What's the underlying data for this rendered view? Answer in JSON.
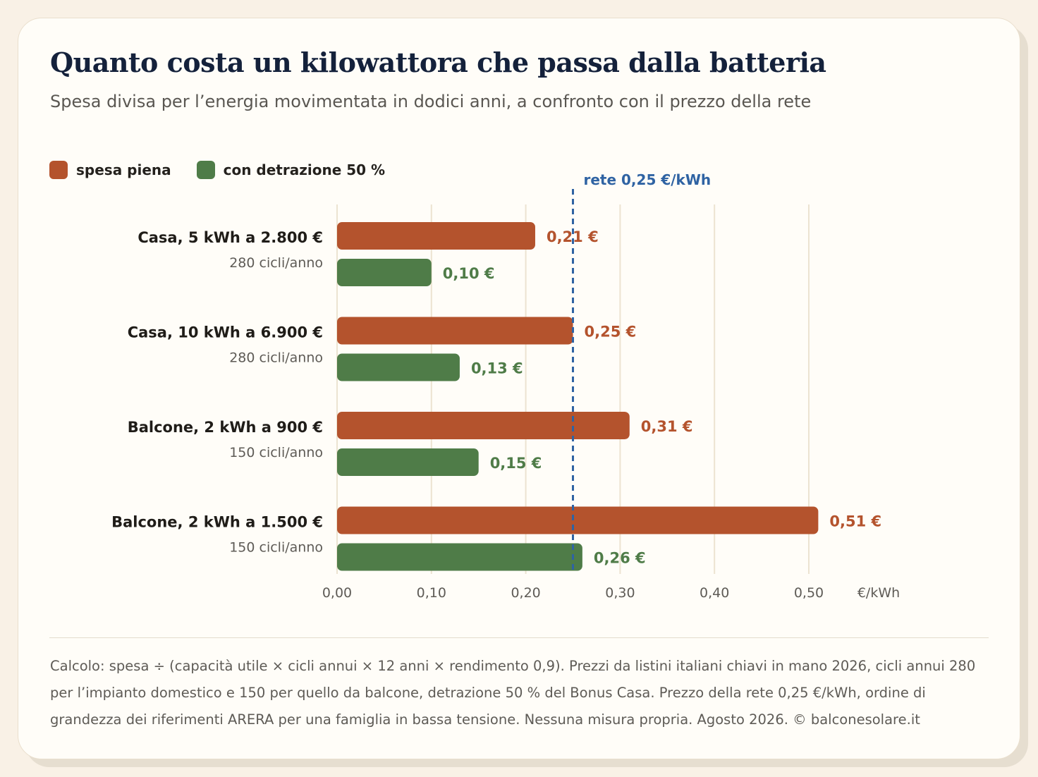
{
  "title": "Quanto costa un kilowattora che passa dalla batteria",
  "subtitle": "Spesa divisa per l’energia movimentata in dodici anni, a confronto con il prezzo della rete",
  "legend": [
    {
      "label": "spesa piena",
      "color": "#b4532d"
    },
    {
      "label": "con detrazione 50 %",
      "color": "#4f7c48"
    }
  ],
  "footnote": "Calcolo: spesa ÷ (capacità utile × cicli annui × 12 anni × rendimento 0,9). Prezzi da listini italiani chiavi in mano 2026, cicli annui 280 per l’impianto domestico e 150 per quello da balcone, detrazione 50 % del Bonus Casa. Prezzo della rete 0,25 €/kWh, ordine di grandezza dei riferimenti ARERA per una famiglia in bassa tensione. Nessuna misura propria. Agosto 2026. © balconesolare.it",
  "chart_data": {
    "type": "bar",
    "orientation": "horizontal",
    "categories": [
      {
        "label": "Casa, 5 kWh a 2.800 €",
        "sublabel": "280 cicli/anno"
      },
      {
        "label": "Casa, 10 kWh a 6.900 €",
        "sublabel": "280 cicli/anno"
      },
      {
        "label": "Balcone, 2 kWh a 900 €",
        "sublabel": "150 cicli/anno"
      },
      {
        "label": "Balcone, 2 kWh a 1.500 €",
        "sublabel": "150 cicli/anno"
      }
    ],
    "series": [
      {
        "name": "spesa piena",
        "color": "#b4532d",
        "values": [
          0.21,
          0.25,
          0.31,
          0.51
        ],
        "value_labels": [
          "0,21 €",
          "0,25 €",
          "0,31 €",
          "0,51 €"
        ]
      },
      {
        "name": "con detrazione 50 %",
        "color": "#4f7c48",
        "values": [
          0.1,
          0.13,
          0.15,
          0.26
        ],
        "value_labels": [
          "0,10 €",
          "0,13 €",
          "0,15 €",
          "0,26 €"
        ]
      }
    ],
    "xlim": [
      0,
      0.5
    ],
    "xticks": [
      0,
      0.1,
      0.2,
      0.3,
      0.4,
      0.5
    ],
    "xtick_labels": [
      "0,00",
      "0,10",
      "0,20",
      "0,30",
      "0,40",
      "0,50"
    ],
    "xunit": "€/kWh",
    "reference_line": {
      "value": 0.25,
      "label": "rete 0,25 €/kWh",
      "color": "#2f63a3",
      "style": "dashed"
    },
    "grid": "vertical",
    "legend_position": "top-left"
  }
}
